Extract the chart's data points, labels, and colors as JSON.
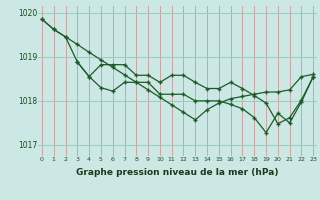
{
  "bg_color": "#cce8e4",
  "line_color": "#1a5c28",
  "grid_color_v": "#cc9999",
  "grid_color_h": "#99ccbb",
  "xlabel": "Graphe pression niveau de la mer (hPa)",
  "xlim": [
    -0.3,
    23.3
  ],
  "ylim": [
    1016.75,
    1020.15
  ],
  "yticks": [
    1017,
    1018,
    1019,
    1020
  ],
  "xticks": [
    0,
    1,
    2,
    3,
    4,
    5,
    6,
    7,
    8,
    9,
    10,
    11,
    12,
    13,
    14,
    15,
    16,
    17,
    18,
    19,
    20,
    21,
    22,
    23
  ],
  "line1_x": [
    0,
    1,
    2,
    3,
    4,
    5,
    6,
    7,
    8,
    9,
    10,
    11,
    12,
    13,
    14,
    15,
    16,
    17,
    18,
    19,
    20,
    21,
    22,
    23
  ],
  "line1_y": [
    1019.85,
    1019.62,
    1019.45,
    1019.28,
    1019.1,
    1018.93,
    1018.76,
    1018.59,
    1018.42,
    1018.25,
    1018.08,
    1017.91,
    1017.74,
    1017.57,
    1017.8,
    1017.95,
    1018.05,
    1018.1,
    1018.15,
    1018.2,
    1018.2,
    1018.25,
    1018.55,
    1018.6
  ],
  "line2_x": [
    0,
    1,
    2,
    3,
    4,
    5,
    6,
    7,
    8,
    9,
    10,
    11,
    12,
    13,
    14,
    15,
    16,
    17,
    18,
    19,
    20,
    21,
    22,
    23
  ],
  "line2_y": [
    1019.85,
    1019.62,
    1019.45,
    1018.88,
    1018.55,
    1018.3,
    1018.22,
    1018.42,
    1018.42,
    1018.42,
    1018.15,
    1018.15,
    1018.15,
    1018.0,
    1018.0,
    1018.0,
    1017.92,
    1017.82,
    1017.62,
    1017.28,
    1017.72,
    1017.5,
    1017.98,
    1018.55
  ],
  "line3_x": [
    3,
    4,
    5,
    6,
    7,
    8,
    9,
    10,
    11,
    12,
    13,
    14,
    15,
    16,
    17,
    18,
    19,
    20,
    21,
    22,
    23
  ],
  "line3_y": [
    1018.88,
    1018.55,
    1018.82,
    1018.82,
    1018.82,
    1018.58,
    1018.58,
    1018.42,
    1018.58,
    1018.58,
    1018.42,
    1018.28,
    1018.28,
    1018.42,
    1018.28,
    1018.12,
    1017.95,
    1017.48,
    1017.62,
    1018.02,
    1018.55
  ]
}
